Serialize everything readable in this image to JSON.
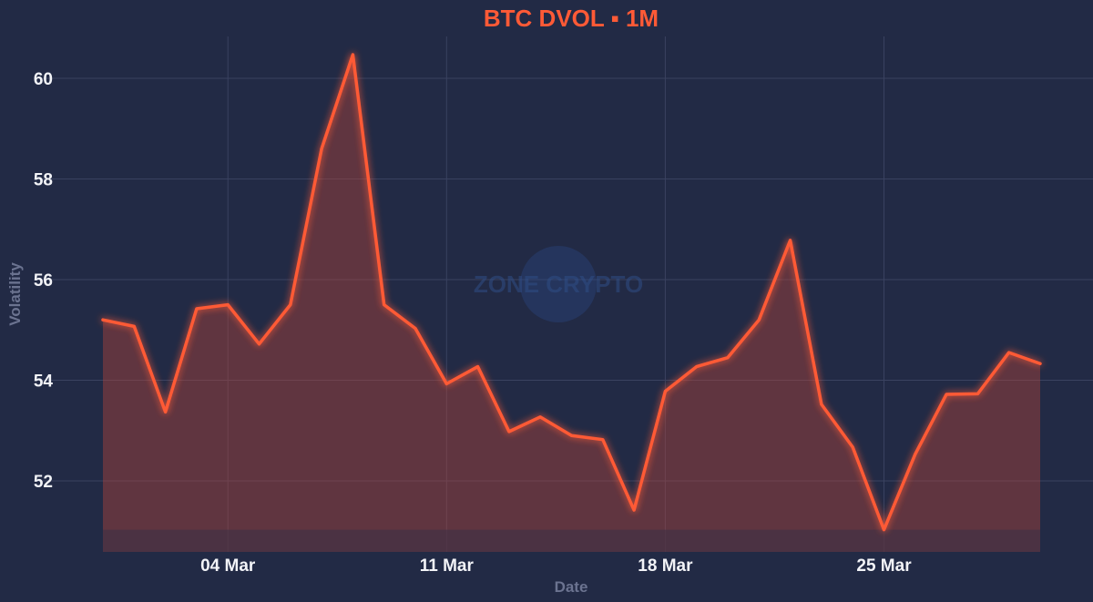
{
  "chart_data": {
    "type": "area",
    "title": "BTC DVOL ▪ 1M",
    "xlabel": "Date",
    "ylabel": "Volatility",
    "x_ticks": [
      {
        "label": "04 Mar",
        "index": 4
      },
      {
        "label": "11 Mar",
        "index": 11
      },
      {
        "label": "18 Mar",
        "index": 18
      },
      {
        "label": "25 Mar",
        "index": 25
      }
    ],
    "y_ticks": [
      52,
      54,
      56,
      58,
      60
    ],
    "ylim": [
      50.6,
      61.0
    ],
    "grid": true,
    "legend": "none",
    "colors": {
      "line": "#ff5a36",
      "fill": "#b8453a",
      "background": "#222a45",
      "title": "#ff5a36"
    },
    "series": [
      {
        "dates": [
          "29 Feb",
          "01 Mar",
          "02 Mar",
          "03 Mar",
          "04 Mar",
          "05 Mar",
          "06 Mar",
          "07 Mar",
          "08 Mar",
          "09 Mar",
          "10 Mar",
          "11 Mar",
          "12 Mar",
          "13 Mar",
          "14 Mar",
          "15 Mar",
          "16 Mar",
          "17 Mar",
          "18 Mar",
          "19 Mar",
          "20 Mar",
          "21 Mar",
          "22 Mar",
          "23 Mar",
          "24 Mar",
          "25 Mar",
          "26 Mar",
          "27 Mar",
          "28 Mar",
          "29 Mar",
          "30 Mar"
        ],
        "values": [
          55.2,
          55.07,
          53.37,
          55.42,
          55.5,
          54.72,
          55.5,
          58.6,
          60.47,
          55.5,
          55.03,
          53.93,
          54.27,
          52.98,
          53.27,
          52.9,
          52.82,
          51.42,
          53.78,
          54.27,
          54.45,
          55.2,
          56.78,
          53.52,
          52.67,
          51.03,
          52.53,
          53.72,
          53.73,
          54.55,
          54.33
        ]
      }
    ],
    "watermark": "ZONE CRYPTO"
  }
}
